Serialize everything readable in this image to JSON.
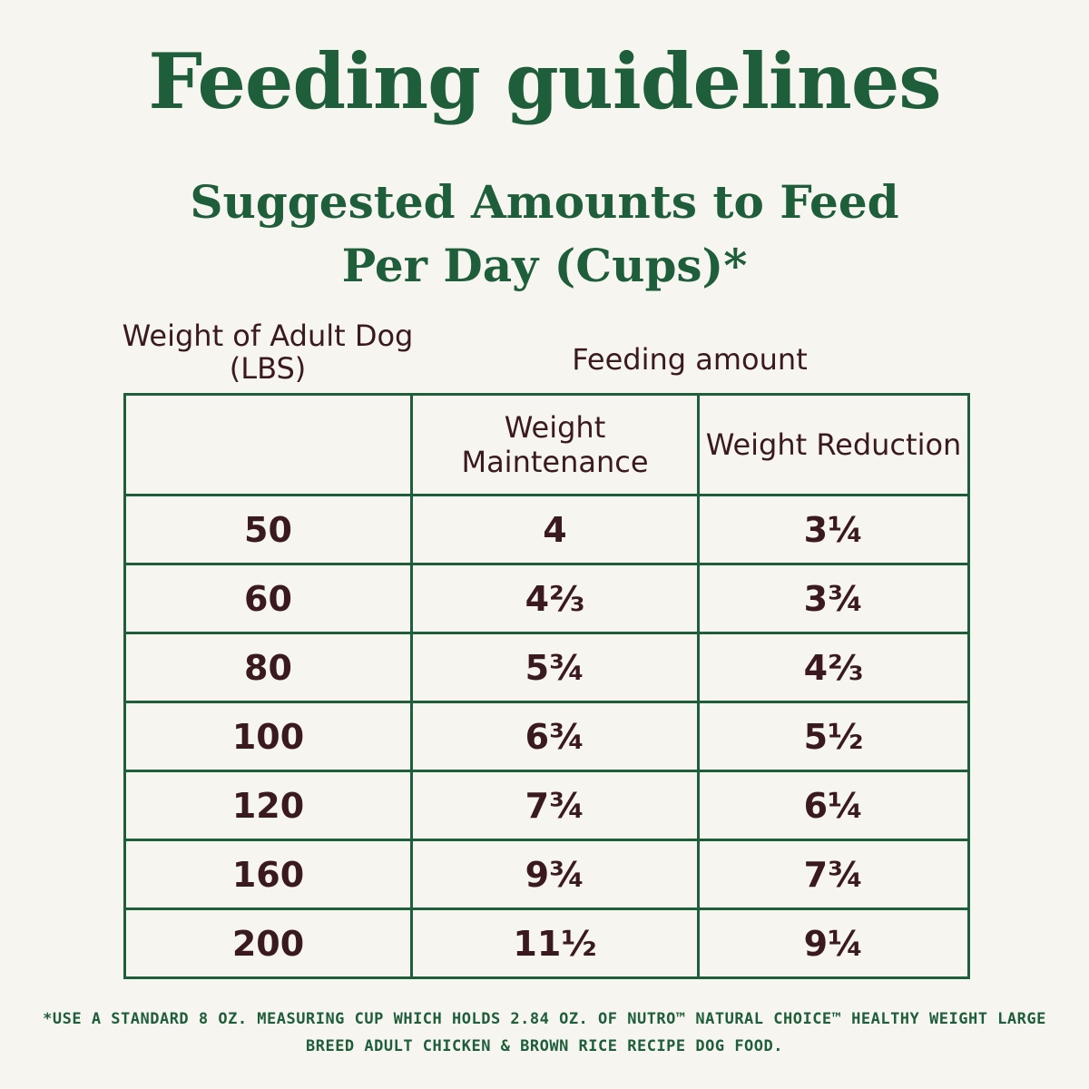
{
  "title": "Feeding guidelines",
  "subtitle": {
    "line1": "Suggested Amounts to Feed",
    "line2": "Per Day (Cups)*"
  },
  "labels": {
    "weight": "Weight of Adult Dog (LBS)",
    "feeding": "Feeding amount"
  },
  "table": {
    "headers": [
      "",
      "Weight Maintenance",
      "Weight Reduction"
    ],
    "rows": [
      {
        "weight": "50",
        "maintenance": "4",
        "reduction": "3¼"
      },
      {
        "weight": "60",
        "maintenance": "4⅔",
        "reduction": "3¾"
      },
      {
        "weight": "80",
        "maintenance": "5¾",
        "reduction": "4⅔"
      },
      {
        "weight": "100",
        "maintenance": "6¾",
        "reduction": "5½"
      },
      {
        "weight": "120",
        "maintenance": "7¾",
        "reduction": "6¼"
      },
      {
        "weight": "160",
        "maintenance": "9¾",
        "reduction": "7¾"
      },
      {
        "weight": "200",
        "maintenance": "11½",
        "reduction": "9¼"
      }
    ]
  },
  "footnote": "*USE A STANDARD 8 OZ. MEASURING CUP WHICH HOLDS 2.84 OZ. OF NUTRO™ NATURAL CHOICE™ HEALTHY WEIGHT LARGE BREED ADULT CHICKEN & BROWN RICE RECIPE DOG FOOD.",
  "colors": {
    "green": "#1f5e3a",
    "text": "#3a1a1c",
    "background": "#f6f5ef"
  }
}
